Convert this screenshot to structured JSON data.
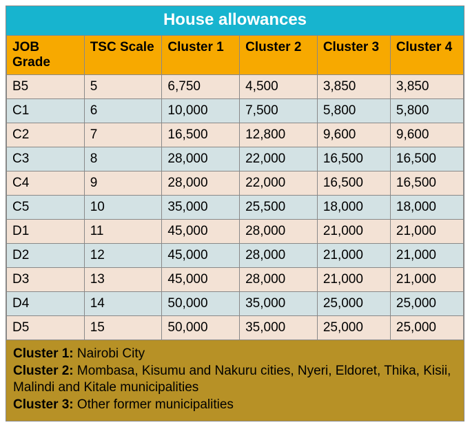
{
  "title": "House allowances",
  "title_bg": "#17b4cf",
  "title_color": "#ffffff",
  "title_fontsize": 24,
  "header_bg": "#f7a900",
  "header_color": "#000000",
  "row_alt_colors": [
    "#f3e2d5",
    "#d3e2e4"
  ],
  "footer_bg": "#b79126",
  "footer_color": "#000000",
  "border_color": "#888888",
  "columns": [
    "JOB Grade",
    "TSC Scale",
    "Cluster 1",
    "Cluster 2",
    "Cluster 3",
    "Cluster 4"
  ],
  "rows": [
    [
      "B5",
      "5",
      "6,750",
      "4,500",
      "3,850",
      "3,850"
    ],
    [
      "C1",
      "6",
      "10,000",
      "7,500",
      "5,800",
      "5,800"
    ],
    [
      "C2",
      "7",
      "16,500",
      "12,800",
      "9,600",
      "9,600"
    ],
    [
      "C3",
      "8",
      "28,000",
      "22,000",
      "16,500",
      "16,500"
    ],
    [
      "C4",
      "9",
      "28,000",
      "22,000",
      "16,500",
      "16,500"
    ],
    [
      "C5",
      "10",
      "35,000",
      "25,500",
      "18,000",
      "18,000"
    ],
    [
      "D1",
      "11",
      "45,000",
      "28,000",
      "21,000",
      "21,000"
    ],
    [
      "D2",
      "12",
      "45,000",
      "28,000",
      "21,000",
      "21,000"
    ],
    [
      "D3",
      "13",
      "45,000",
      "28,000",
      "21,000",
      "21,000"
    ],
    [
      "D4",
      "14",
      "50,000",
      "35,000",
      "25,000",
      "25,000"
    ],
    [
      "D5",
      "15",
      "50,000",
      "35,000",
      "25,000",
      "25,000"
    ]
  ],
  "footer": [
    {
      "label": "Cluster 1:",
      "text": " Nairobi City"
    },
    {
      "label": "Cluster 2:",
      "text": " Mombasa, Kisumu and Nakuru cities, Nyeri, Eldoret, Thika, Kisii, Malindi and Kitale municipalities"
    },
    {
      "label": "Cluster 3:",
      "text": " Other former municipalities"
    }
  ]
}
